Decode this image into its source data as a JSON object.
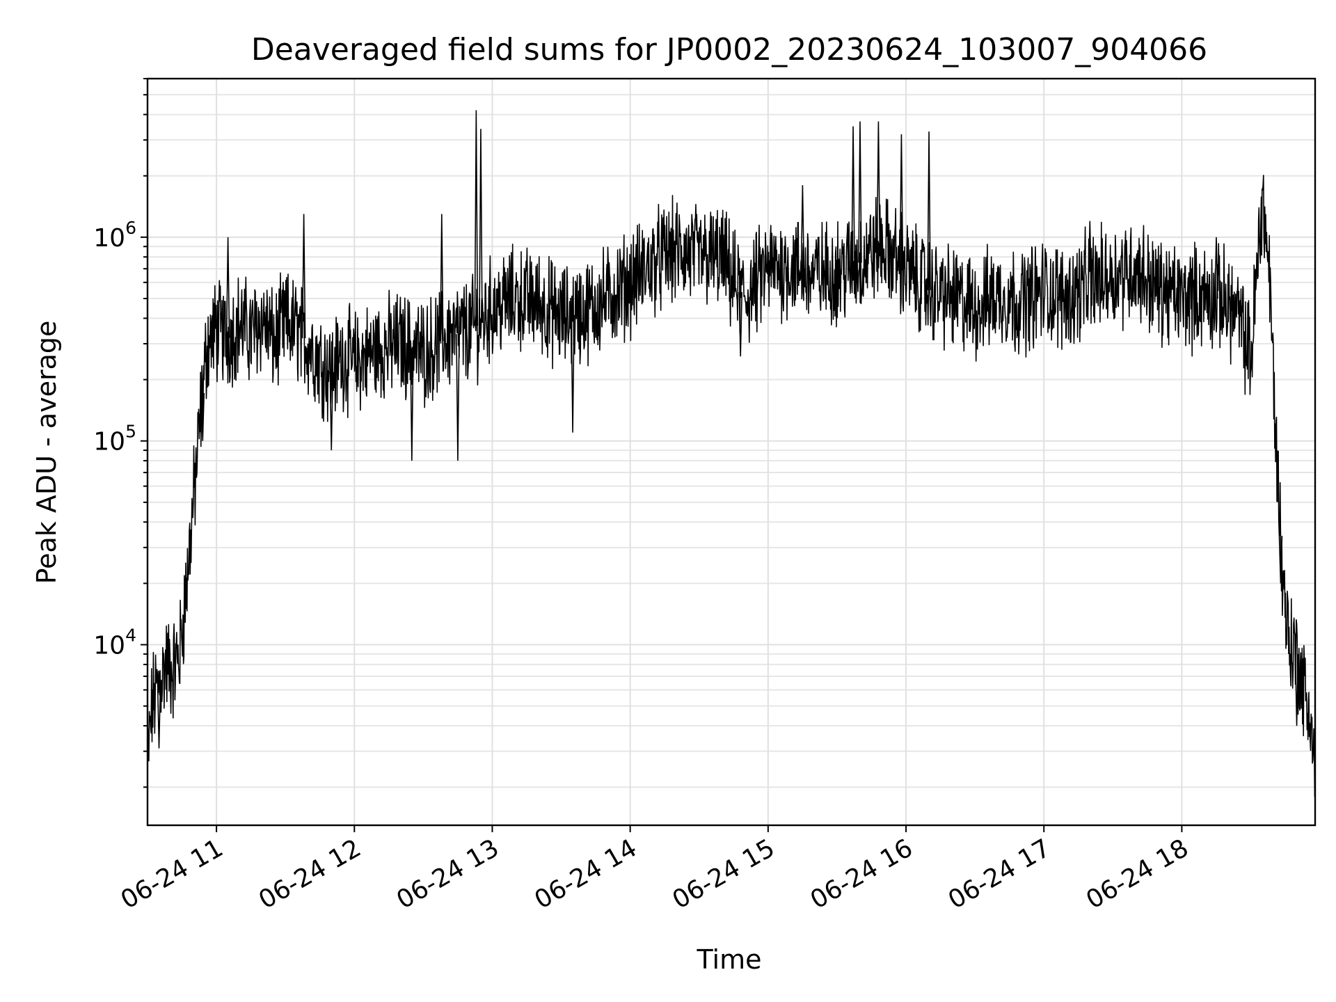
{
  "chart_data": {
    "type": "line",
    "title": "Deaveraged field sums for JP0002_20230624_103007_904066",
    "xlabel": "Time",
    "ylabel": "Peak ADU - average",
    "yscale": "log",
    "ylim": [
      1300,
      6000000
    ],
    "xlim": [
      "2023-06-24 10:30",
      "2023-06-24 18:58"
    ],
    "grid": true,
    "line_color": "#000000",
    "grid_color": "#e0e0e0",
    "x_ticks": [
      {
        "value": "2023-06-24 11:00",
        "label": "06-24 11"
      },
      {
        "value": "2023-06-24 12:00",
        "label": "06-24 12"
      },
      {
        "value": "2023-06-24 13:00",
        "label": "06-24 13"
      },
      {
        "value": "2023-06-24 14:00",
        "label": "06-24 14"
      },
      {
        "value": "2023-06-24 15:00",
        "label": "06-24 15"
      },
      {
        "value": "2023-06-24 16:00",
        "label": "06-24 16"
      },
      {
        "value": "2023-06-24 17:00",
        "label": "06-24 17"
      },
      {
        "value": "2023-06-24 18:00",
        "label": "06-24 18"
      }
    ],
    "y_ticks": [
      {
        "value": 10000,
        "base": "10",
        "exp": "4"
      },
      {
        "value": 100000,
        "base": "10",
        "exp": "5"
      },
      {
        "value": 1000000,
        "base": "10",
        "exp": "6"
      }
    ],
    "series": [
      {
        "x": [
          "2023-06-24 10:30",
          "2023-06-24 10:32",
          "2023-06-24 10:35",
          "2023-06-24 10:38",
          "2023-06-24 10:41",
          "2023-06-24 10:44",
          "2023-06-24 10:47",
          "2023-06-24 10:50",
          "2023-06-24 10:53",
          "2023-06-24 10:56",
          "2023-06-24 11:00",
          "2023-06-24 11:05",
          "2023-06-24 11:10",
          "2023-06-24 11:15",
          "2023-06-24 11:20",
          "2023-06-24 11:25",
          "2023-06-24 11:30",
          "2023-06-24 11:35",
          "2023-06-24 11:40",
          "2023-06-24 11:45",
          "2023-06-24 11:50",
          "2023-06-24 11:55",
          "2023-06-24 12:00",
          "2023-06-24 12:10",
          "2023-06-24 12:20",
          "2023-06-24 12:30",
          "2023-06-24 12:40",
          "2023-06-24 12:50",
          "2023-06-24 12:55",
          "2023-06-24 13:00",
          "2023-06-24 13:10",
          "2023-06-24 13:20",
          "2023-06-24 13:30",
          "2023-06-24 13:40",
          "2023-06-24 13:50",
          "2023-06-24 14:00",
          "2023-06-24 14:10",
          "2023-06-24 14:20",
          "2023-06-24 14:30",
          "2023-06-24 14:40",
          "2023-06-24 14:45",
          "2023-06-24 14:50",
          "2023-06-24 15:00",
          "2023-06-24 15:10",
          "2023-06-24 15:20",
          "2023-06-24 15:30",
          "2023-06-24 15:40",
          "2023-06-24 15:45",
          "2023-06-24 15:50",
          "2023-06-24 16:00",
          "2023-06-24 16:10",
          "2023-06-24 16:20",
          "2023-06-24 16:30",
          "2023-06-24 16:40",
          "2023-06-24 16:50",
          "2023-06-24 17:00",
          "2023-06-24 17:10",
          "2023-06-24 17:20",
          "2023-06-24 17:30",
          "2023-06-24 17:40",
          "2023-06-24 17:50",
          "2023-06-24 18:00",
          "2023-06-24 18:10",
          "2023-06-24 18:20",
          "2023-06-24 18:25",
          "2023-06-24 18:30",
          "2023-06-24 18:35",
          "2023-06-24 18:38",
          "2023-06-24 18:41",
          "2023-06-24 18:44",
          "2023-06-24 18:47",
          "2023-06-24 18:50",
          "2023-06-24 18:53",
          "2023-06-24 18:56",
          "2023-06-24 18:58"
        ],
        "y": [
          2600,
          5000,
          6500,
          8000,
          7500,
          9000,
          20000,
          50000,
          130000,
          300000,
          350000,
          320000,
          380000,
          330000,
          400000,
          300000,
          380000,
          350000,
          300000,
          250000,
          220000,
          260000,
          240000,
          280000,
          300000,
          270000,
          320000,
          350000,
          380000,
          450000,
          500000,
          480000,
          400000,
          430000,
          500000,
          600000,
          750000,
          850000,
          800000,
          780000,
          600000,
          500000,
          700000,
          720000,
          650000,
          680000,
          750000,
          850000,
          900000,
          700000,
          550000,
          500000,
          450000,
          520000,
          480000,
          550000,
          500000,
          600000,
          650000,
          700000,
          550000,
          500000,
          520000,
          480000,
          400000,
          250000,
          1600000,
          700000,
          100000,
          20000,
          10000,
          9000,
          6000,
          4500,
          2200
        ]
      }
    ],
    "spikes": [
      {
        "x": "2023-06-24 10:54",
        "y": 100000
      },
      {
        "x": "2023-06-24 11:05",
        "y": 1000000
      },
      {
        "x": "2023-06-24 11:38",
        "y": 1300000
      },
      {
        "x": "2023-06-24 12:38",
        "y": 1300000
      },
      {
        "x": "2023-06-24 12:53",
        "y": 4200000
      },
      {
        "x": "2023-06-24 12:55",
        "y": 3400000
      },
      {
        "x": "2023-06-24 15:15",
        "y": 1800000
      },
      {
        "x": "2023-06-24 15:37",
        "y": 3500000
      },
      {
        "x": "2023-06-24 15:40",
        "y": 3700000
      },
      {
        "x": "2023-06-24 15:48",
        "y": 3700000
      },
      {
        "x": "2023-06-24 15:58",
        "y": 3200000
      },
      {
        "x": "2023-06-24 16:10",
        "y": 3300000
      },
      {
        "x": "2023-06-24 17:20",
        "y": 1200000
      },
      {
        "x": "2023-06-24 18:15",
        "y": 1000000
      }
    ],
    "dips": [
      {
        "x": "2023-06-24 10:35",
        "y": 3100
      },
      {
        "x": "2023-06-24 11:50",
        "y": 90000
      },
      {
        "x": "2023-06-24 12:25",
        "y": 80000
      },
      {
        "x": "2023-06-24 12:45",
        "y": 80000
      },
      {
        "x": "2023-06-24 13:35",
        "y": 110000
      },
      {
        "x": "2023-06-24 14:48",
        "y": 260000
      },
      {
        "x": "2023-06-24 18:43",
        "y": 20000
      },
      {
        "x": "2023-06-24 18:50",
        "y": 4000
      }
    ]
  }
}
